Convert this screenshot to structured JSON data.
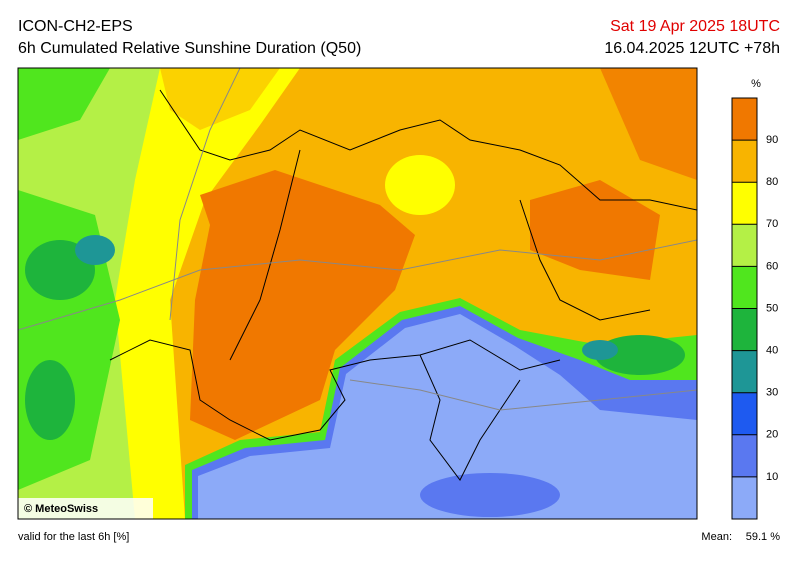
{
  "header": {
    "model": "ICON-CH2-EPS",
    "product": "6h Cumulated Relative Sunshine Duration (Q50)",
    "valid_time": "Sat 19 Apr 2025 18UTC",
    "run": "16.04.2025 12UTC +78h"
  },
  "colorbar": {
    "unit": "%",
    "range": [
      0,
      100
    ],
    "ticks": [
      10,
      20,
      30,
      40,
      50,
      60,
      70,
      80,
      90
    ],
    "bins": [
      {
        "from": 0,
        "to": 10,
        "color": "#8caaf8"
      },
      {
        "from": 10,
        "to": 20,
        "color": "#5a78f0"
      },
      {
        "from": 20,
        "to": 30,
        "color": "#1e5af0"
      },
      {
        "from": 30,
        "to": 40,
        "color": "#1e9696"
      },
      {
        "from": 40,
        "to": 50,
        "color": "#1eb43c"
      },
      {
        "from": 50,
        "to": 60,
        "color": "#50e61e"
      },
      {
        "from": 60,
        "to": 70,
        "color": "#b4f046"
      },
      {
        "from": 70,
        "to": 80,
        "color": "#ffff00"
      },
      {
        "from": 80,
        "to": 90,
        "color": "#f8b400"
      },
      {
        "from": 90,
        "to": 100,
        "color": "#f07800"
      }
    ]
  },
  "map": {
    "credit": "© MeteoSwiss"
  },
  "footer": {
    "validity": "valid for the last 6h [%]",
    "mean_label": "Mean:",
    "mean_value": "59.1 %"
  }
}
